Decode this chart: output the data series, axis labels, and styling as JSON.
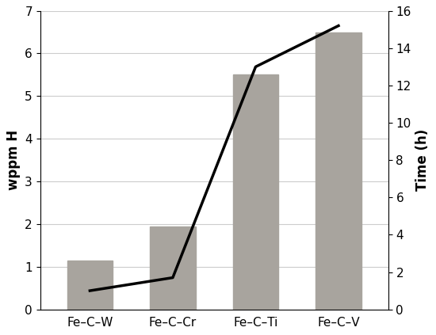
{
  "categories": [
    "Fe–C–W",
    "Fe–C–Cr",
    "Fe–C–Ti",
    "Fe–C–V"
  ],
  "bar_values": [
    1.15,
    1.95,
    5.5,
    6.5
  ],
  "line_values": [
    1.0,
    1.7,
    13.0,
    15.2
  ],
  "bar_color": "#a8a49e",
  "bar_edgecolor": "#a8a49e",
  "line_color": "#000000",
  "left_ylabel": "wppm H",
  "right_ylabel": "Time (h)",
  "ylim_left": [
    0,
    7
  ],
  "ylim_right": [
    0,
    16
  ],
  "yticks_left": [
    0,
    1,
    2,
    3,
    4,
    5,
    6,
    7
  ],
  "yticks_right": [
    0,
    2,
    4,
    6,
    8,
    10,
    12,
    14,
    16
  ],
  "background_color": "#ffffff",
  "line_width": 2.5,
  "bar_width": 0.55,
  "font_size": 11,
  "ylabel_fontsize": 12
}
